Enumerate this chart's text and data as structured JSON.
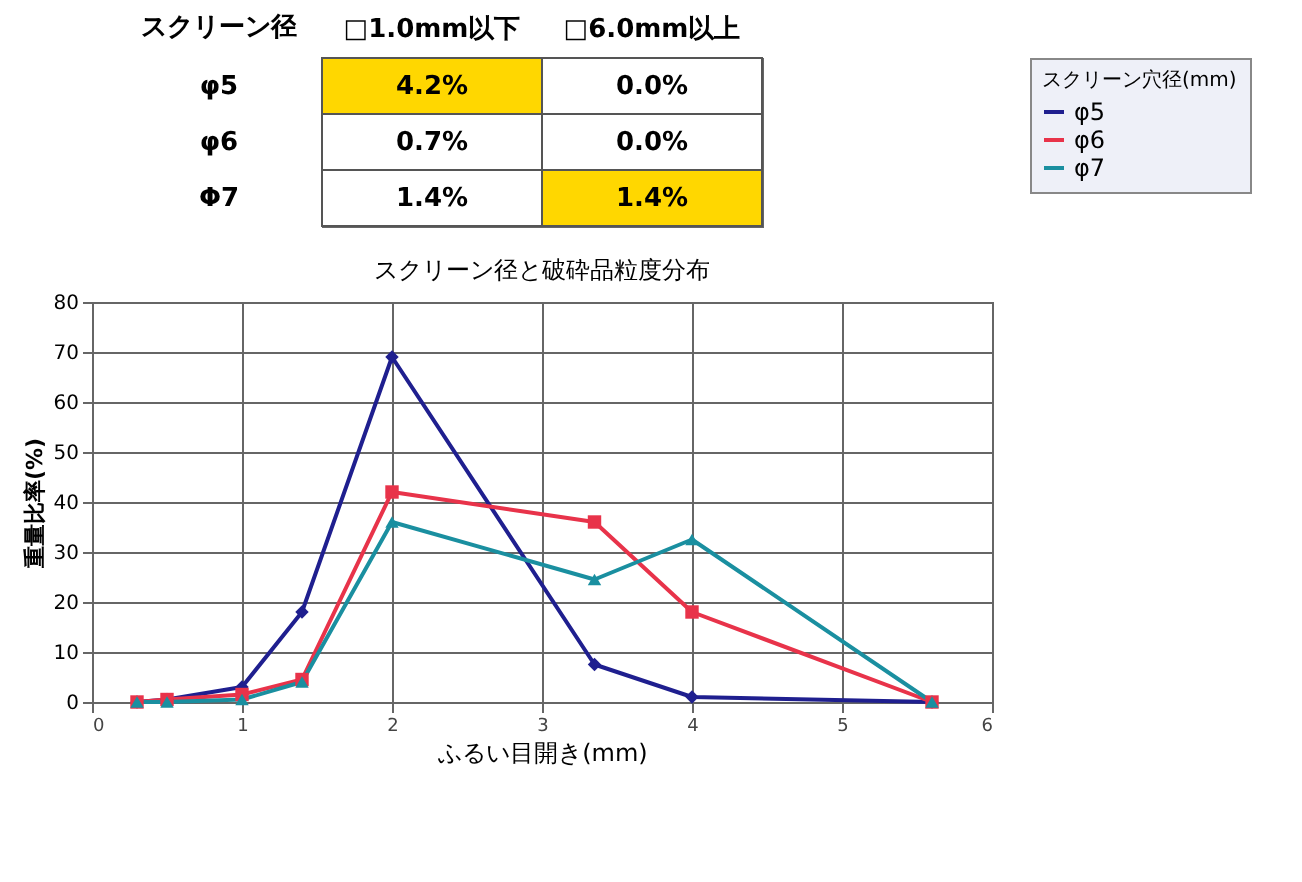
{
  "chart_data": [
    {
      "type": "other",
      "ylabel": "スクリーン径",
      "categories": [
        "□1.0mm以下",
        "□6.0mm以上"
      ],
      "y_categories": [
        "φ5",
        "φ6",
        "Φ7"
      ],
      "cell_labels": [
        [
          "4.2%",
          "0.0%"
        ],
        [
          "0.7%",
          "0.0%"
        ],
        [
          "1.4%",
          "1.4%"
        ]
      ],
      "colors": [
        [
          "#ffd700",
          "#ffffff"
        ],
        [
          "#ffffff",
          "#ffffff"
        ],
        [
          "#ffffff",
          "#ffd700"
        ]
      ]
    },
    {
      "type": "line",
      "title": "スクリーン径と破砕品粒度分布",
      "xlabel": "ふるい目開き(mm)",
      "ylabel": "重量比率(%)",
      "legend_title": "スクリーン穴径(mm)",
      "x": [
        0.3,
        0.5,
        1,
        1.4,
        2,
        3.35,
        4,
        5.6
      ],
      "series": [
        {
          "name": "φ5",
          "color": "#1f1f8f",
          "marker": "diamond",
          "values": [
            0,
            0.5,
            3,
            18,
            69,
            7.5,
            1,
            0
          ]
        },
        {
          "name": "φ6",
          "color": "#e8334a",
          "marker": "square",
          "values": [
            0,
            0.5,
            1.5,
            4.5,
            42,
            36,
            18,
            0
          ]
        },
        {
          "name": "φ7",
          "color": "#1a8fa0",
          "marker": "triangle",
          "values": [
            0,
            0,
            0.5,
            4,
            36,
            24.5,
            32.5,
            0
          ]
        }
      ],
      "xlim": [
        0,
        6
      ],
      "xticks": [
        0,
        1,
        2,
        3,
        4,
        5,
        6
      ],
      "ylim": [
        0,
        80
      ],
      "yticks": [
        0,
        10,
        20,
        30,
        40,
        50,
        60,
        70,
        80
      ],
      "grid": true,
      "legend": "right",
      "line_style": "solid"
    }
  ]
}
